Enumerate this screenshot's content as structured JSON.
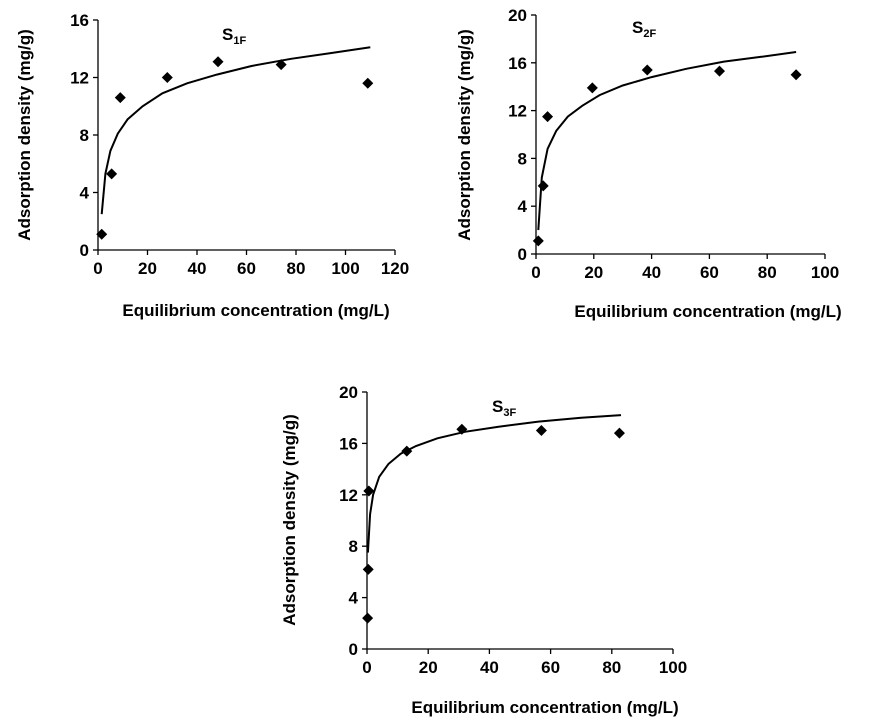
{
  "chart_data": [
    {
      "type": "scatter",
      "title": "S1F",
      "title_main": "S",
      "title_sub": "1F",
      "xlabel": "Equilibrium concentration (mg/L)",
      "ylabel": "Adsorption density (mg/g)",
      "xlim": [
        0,
        120
      ],
      "ylim": [
        0,
        16
      ],
      "xticks": [
        0,
        20,
        40,
        60,
        80,
        100,
        120
      ],
      "yticks": [
        0,
        4,
        8,
        12,
        16
      ],
      "grid": false,
      "series": [
        {
          "kind": "points",
          "marker": "diamond",
          "x": [
            1.5,
            5.5,
            9,
            28,
            48.5,
            74,
            109
          ],
          "y": [
            1.1,
            5.3,
            10.6,
            12.0,
            13.1,
            12.9,
            11.6
          ]
        },
        {
          "kind": "fit-curve",
          "x": [
            1.5,
            3,
            5,
            8,
            12,
            18,
            26,
            36,
            48,
            62,
            78,
            94,
            110
          ],
          "y": [
            2.5,
            5.3,
            6.9,
            8.1,
            9.1,
            10.0,
            10.9,
            11.6,
            12.2,
            12.8,
            13.3,
            13.7,
            14.1
          ]
        }
      ]
    },
    {
      "type": "scatter",
      "title": "S2F",
      "title_main": "S",
      "title_sub": "2F",
      "xlabel": "Equilibrium concentration (mg/L)",
      "ylabel": "Adsorption density (mg/g)",
      "xlim": [
        0,
        100
      ],
      "ylim": [
        0,
        20
      ],
      "xticks": [
        0,
        20,
        40,
        60,
        80,
        100
      ],
      "yticks": [
        0,
        4,
        8,
        12,
        16,
        20
      ],
      "grid": false,
      "series": [
        {
          "kind": "points",
          "marker": "diamond",
          "x": [
            0.8,
            2.5,
            4,
            19.5,
            38.5,
            63.5,
            90
          ],
          "y": [
            1.1,
            5.7,
            11.5,
            13.9,
            15.4,
            15.3,
            15.0
          ]
        },
        {
          "kind": "fit-curve",
          "x": [
            0.8,
            2,
            4,
            7,
            11,
            16,
            22,
            30,
            40,
            52,
            65,
            78,
            90
          ],
          "y": [
            2.0,
            6.4,
            8.8,
            10.3,
            11.5,
            12.4,
            13.3,
            14.1,
            14.8,
            15.5,
            16.1,
            16.5,
            16.9
          ]
        }
      ]
    },
    {
      "type": "scatter",
      "title": "S3F",
      "title_main": "S",
      "title_sub": "3F",
      "xlabel": "Equilibrium concentration (mg/L)",
      "ylabel": "Adsorption density (mg/g)",
      "xlim": [
        0,
        100
      ],
      "ylim": [
        0,
        20
      ],
      "xticks": [
        0,
        20,
        40,
        60,
        80,
        100
      ],
      "yticks": [
        0,
        4,
        8,
        12,
        16,
        20
      ],
      "grid": false,
      "series": [
        {
          "kind": "points",
          "marker": "diamond",
          "x": [
            0.2,
            0.4,
            0.6,
            13,
            31,
            57,
            82.5
          ],
          "y": [
            2.4,
            6.2,
            12.3,
            15.4,
            17.1,
            17.0,
            16.8
          ]
        },
        {
          "kind": "fit-curve",
          "x": [
            0.3,
            1,
            2,
            4,
            7,
            11,
            16,
            23,
            32,
            43,
            56,
            70,
            83
          ],
          "y": [
            7.5,
            10.5,
            12.0,
            13.4,
            14.4,
            15.2,
            15.8,
            16.4,
            16.9,
            17.3,
            17.7,
            18.0,
            18.2
          ]
        }
      ]
    }
  ]
}
